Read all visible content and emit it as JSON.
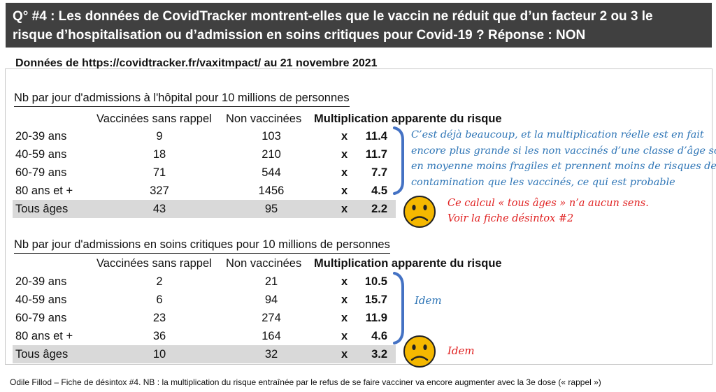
{
  "header": {
    "line1": "Q° #4 : Les données de CovidTracker montrent-elles que le vaccin ne réduit que d’un facteur 2 ou 3 le",
    "line2": "risque d’hospitalisation ou d’admission en soins critiques pour Covid-19 ? Réponse : NON"
  },
  "source": "Données de https://covidtracker.fr/vaxitmpact/ au 21 novembre 2021",
  "columns": {
    "vaccinated": "Vaccinées sans rappel",
    "unvaccinated": "Non vaccinées",
    "multiplication": "Multiplication apparente du risque"
  },
  "hospital": {
    "title": "Nb par jour d'admissions à l'hôpital pour 10 millions de personnes",
    "rows": [
      {
        "age": "20-39 ans",
        "vac": "9",
        "non": "103",
        "x": "x",
        "mult": "11.4"
      },
      {
        "age": "40-59 ans",
        "vac": "18",
        "non": "210",
        "x": "x",
        "mult": "11.7"
      },
      {
        "age": "60-79 ans",
        "vac": "71",
        "non": "544",
        "x": "x",
        "mult": "7.7"
      },
      {
        "age": "80 ans et +",
        "vac": "327",
        "non": "1456",
        "x": "x",
        "mult": "4.5"
      }
    ],
    "total": {
      "age": "Tous âges",
      "vac": "43",
      "non": "95",
      "x": "x",
      "mult": "2.2"
    }
  },
  "critical": {
    "title": "Nb par jour d'admissions en soins critiques  pour 10 millions de personnes",
    "rows": [
      {
        "age": "20-39 ans",
        "vac": "2",
        "non": "21",
        "x": "x",
        "mult": "10.5"
      },
      {
        "age": "40-59 ans",
        "vac": "6",
        "non": "94",
        "x": "x",
        "mult": "15.7"
      },
      {
        "age": "60-79 ans",
        "vac": "23",
        "non": "274",
        "x": "x",
        "mult": "11.9"
      },
      {
        "age": "80 ans et +",
        "vac": "36",
        "non": "164",
        "x": "x",
        "mult": "4.6"
      }
    ],
    "total": {
      "age": "Tous âges",
      "vac": "10",
      "non": "32",
      "x": "x",
      "mult": "3.2"
    }
  },
  "notes": {
    "blue_lines": [
      "C’est déjà beaucoup, et la multiplication réelle est en fait",
      "encore plus grande si les non vaccinés d’une classe d’âge sont",
      "en moyenne moins fragiles et prennent moins de risques de",
      "contamination que les vaccinés, ce qui est probable"
    ],
    "red_line1": "Ce calcul « tous âges » n’a aucun sens.",
    "red_line2": "Voir la fiche désintox #2",
    "idem_blue": "Idem",
    "idem_red": "Idem"
  },
  "colors": {
    "blue": "#2e75b6",
    "red": "#e02020",
    "header_bg": "#404040",
    "smiley": "#f5b800"
  },
  "footer": "Odile Fillod – Fiche de désintox #4. NB : la multiplication du risque entraînée par le refus de se faire vacciner va encore augmenter avec la 3e dose (« rappel »)"
}
